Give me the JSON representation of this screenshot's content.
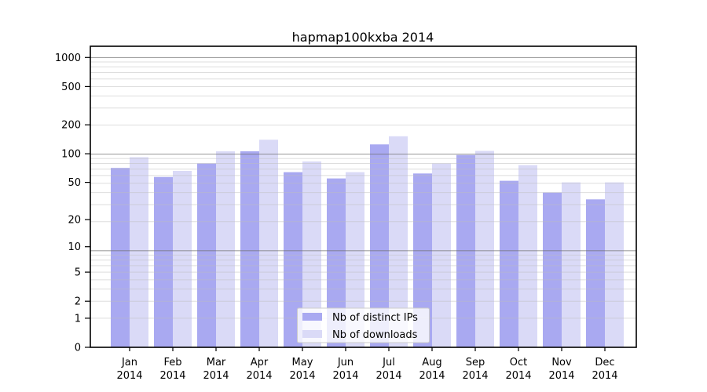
{
  "title": "hapmap100kxba 2014",
  "chart_data": {
    "type": "bar",
    "title": "hapmap100kxba 2014",
    "categories": [
      "Jan",
      "Feb",
      "Mar",
      "Apr",
      "May",
      "Jun",
      "Jul",
      "Aug",
      "Sep",
      "Oct",
      "Nov",
      "Dec"
    ],
    "year_label": "2014",
    "series": [
      {
        "name": "Nb of distinct IPs",
        "color": "#a9a9f1",
        "values": [
          71,
          57,
          79,
          106,
          64,
          55,
          125,
          62,
          97,
          52,
          39,
          33
        ]
      },
      {
        "name": "Nb of downloads",
        "color": "#dadaf7",
        "values": [
          92,
          66,
          106,
          140,
          83,
          64,
          152,
          79,
          107,
          76,
          50,
          50
        ]
      }
    ],
    "xlabel": "",
    "ylabel": "",
    "yscale": "log1p",
    "yticks": [
      0,
      1,
      2,
      5,
      10,
      20,
      50,
      100,
      200,
      500,
      1000
    ],
    "ylim": [
      0,
      1000
    ],
    "grid": "horizontal major (10,100,1000) dark + log minors light, drawn over bars",
    "legend_position": "inside plot, lower center",
    "frame_color": "#000000",
    "major_grid_color": "#a0a0a0",
    "minor_grid_color": "#e4e4e4",
    "legend_border_color": "#cccccc"
  }
}
